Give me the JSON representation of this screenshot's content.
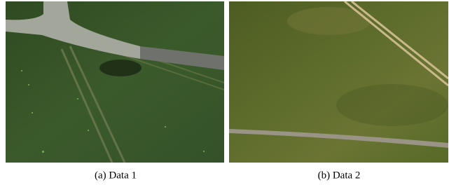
{
  "figures": [
    {
      "caption": "(a) Data 1"
    },
    {
      "caption": "(b) Data 2"
    }
  ]
}
